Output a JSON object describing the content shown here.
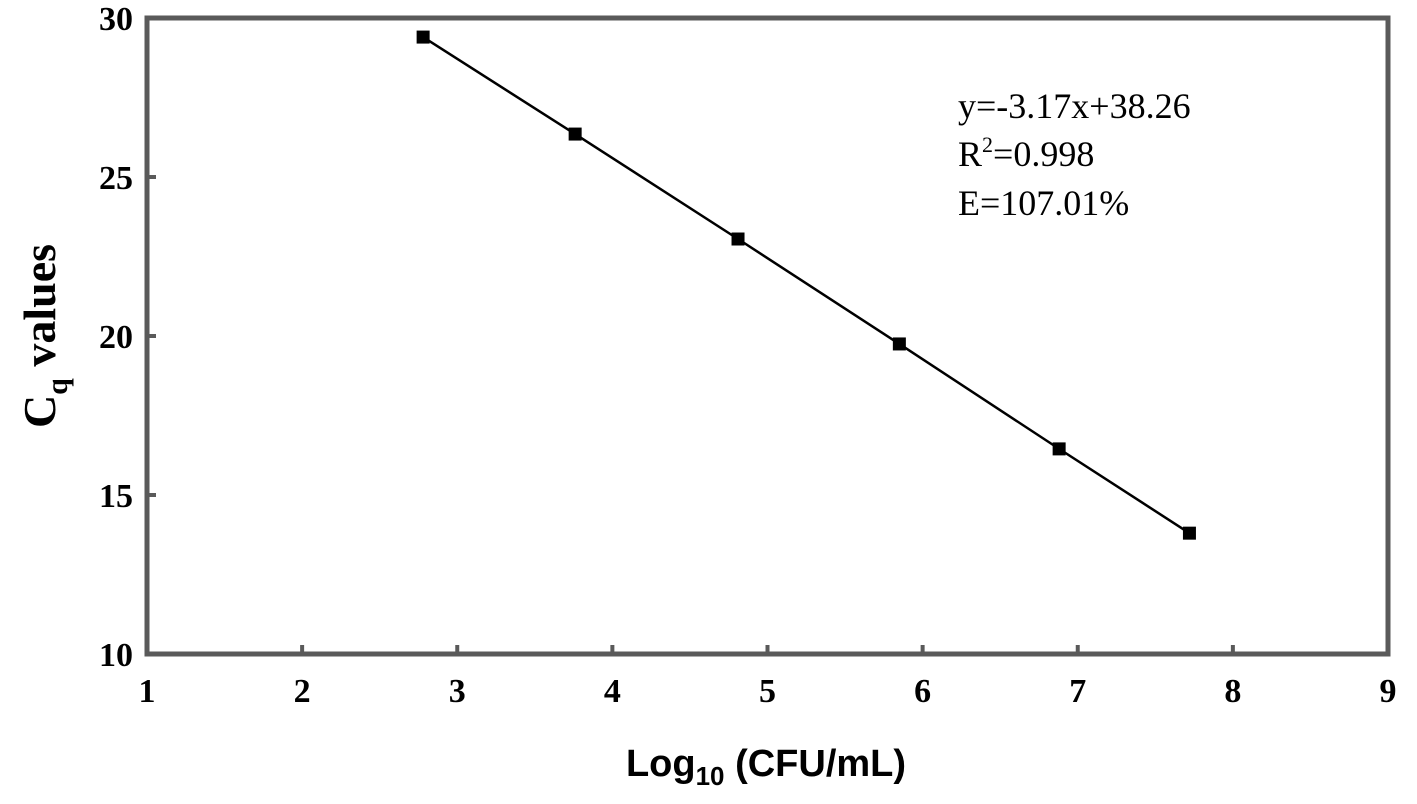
{
  "chart_data": {
    "type": "scatter",
    "xlabel": {
      "main": "Log",
      "sub": "10",
      "rest": " (CFU/mL)"
    },
    "ylabel": {
      "main": "C",
      "sub": "q",
      "rest": " values"
    },
    "xlim": [
      1,
      9
    ],
    "ylim": [
      10,
      30
    ],
    "xticks": [
      1,
      2,
      3,
      4,
      5,
      6,
      7,
      8,
      9
    ],
    "yticks": [
      10,
      15,
      20,
      25,
      30
    ],
    "grid": false,
    "points": [
      {
        "x": 2.78,
        "y": 29.4
      },
      {
        "x": 3.76,
        "y": 26.35
      },
      {
        "x": 4.81,
        "y": 23.05
      },
      {
        "x": 5.85,
        "y": 19.75
      },
      {
        "x": 6.88,
        "y": 16.45
      },
      {
        "x": 7.72,
        "y": 13.8
      }
    ],
    "annotations": {
      "equation": "y=-3.17x+38.26",
      "r2_prefix": "R",
      "r2_sup": "2",
      "r2_rest": "=0.998",
      "efficiency": "E=107.01%"
    },
    "colors": {
      "frame": "#5a5a5a",
      "line": "#000000",
      "marker": "#000000"
    }
  }
}
